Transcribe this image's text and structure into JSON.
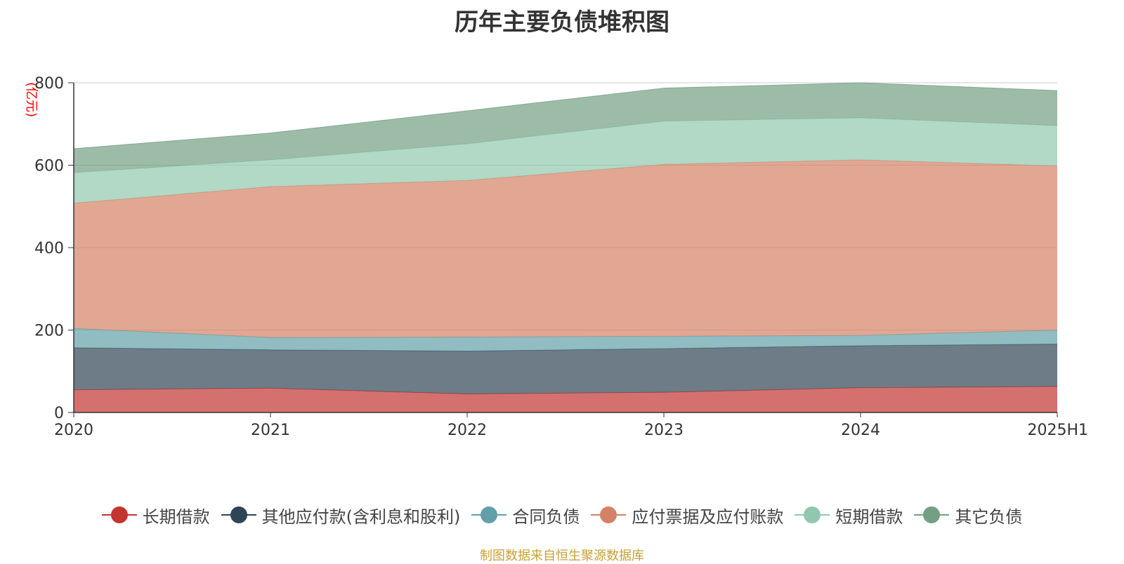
{
  "chart_data": {
    "type": "area",
    "stacked": true,
    "title": "历年主要负债堆积图",
    "ylabel": "(亿元)",
    "xlabel": "",
    "ylim": [
      0,
      800
    ],
    "yticks": [
      0,
      200,
      400,
      600,
      800
    ],
    "categories": [
      "2020",
      "2021",
      "2022",
      "2023",
      "2024",
      "2025H1"
    ],
    "grid": true,
    "legend_position": "bottom",
    "series": [
      {
        "name": "长期借款",
        "color": "#c23531",
        "values": [
          55,
          59,
          45,
          49,
          60,
          63
        ]
      },
      {
        "name": "其他应付款(含利息和股利)",
        "color": "#2f4554",
        "values": [
          102,
          93,
          104,
          106,
          102,
          103
        ]
      },
      {
        "name": "合同负债",
        "color": "#61a0a8",
        "values": [
          47,
          30,
          34,
          30,
          25,
          34
        ]
      },
      {
        "name": "应付票据及应付账款",
        "color": "#d48265",
        "values": [
          304,
          366,
          380,
          417,
          426,
          398
        ]
      },
      {
        "name": "短期借款",
        "color": "#91c7ae",
        "values": [
          74,
          65,
          89,
          105,
          102,
          98
        ]
      },
      {
        "name": "其它负债",
        "color": "#749f83",
        "values": [
          58,
          65,
          80,
          80,
          85,
          85
        ]
      }
    ]
  },
  "source_note": "制图数据来自恒生聚源数据库"
}
